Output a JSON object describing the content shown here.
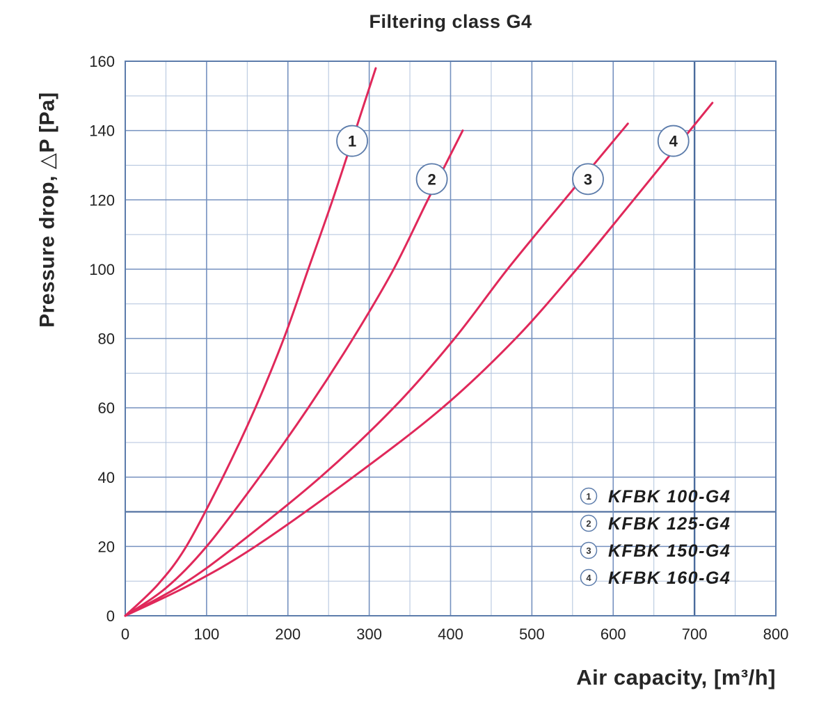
{
  "chart_data": {
    "type": "line",
    "title": "Filtering class G4",
    "xlabel": "Air capacity, [m³/h]",
    "ylabel": "Pressure drop, △P [Pa]",
    "xlim": [
      0,
      800
    ],
    "ylim": [
      0,
      160
    ],
    "x_ticks": [
      0,
      100,
      200,
      300,
      400,
      500,
      600,
      700,
      800
    ],
    "y_ticks": [
      0,
      20,
      40,
      60,
      80,
      100,
      120,
      140,
      160
    ],
    "x_major_step": 100,
    "x_minor_step": 50,
    "y_major_step": 20,
    "y_minor_step": 10,
    "grid": true,
    "highlight_gridlines": {
      "x": 700,
      "y": 30
    },
    "legend_position": "bottom-right",
    "colors": {
      "curve": "#e0285a",
      "grid_major": "#7591bf",
      "grid_minor": "#b0c2dc",
      "grid_highlight": "#4a6b9c",
      "frame": "#5c7cab",
      "text": "#222222",
      "marker_fill": "#fdfdfd"
    },
    "series": [
      {
        "id": "1",
        "name": "KFBK 100-G4",
        "marker": {
          "x": 279,
          "y": 137
        },
        "points": [
          [
            0,
            0
          ],
          [
            40,
            9
          ],
          [
            75,
            20
          ],
          [
            120,
            40
          ],
          [
            160,
            60
          ],
          [
            195,
            80
          ],
          [
            225,
            100
          ],
          [
            255,
            120
          ],
          [
            283,
            140
          ],
          [
            308,
            158
          ]
        ]
      },
      {
        "id": "2",
        "name": "KFBK 125-G4",
        "marker": {
          "x": 377,
          "y": 126
        },
        "points": [
          [
            0,
            0
          ],
          [
            50,
            8
          ],
          [
            100,
            20
          ],
          [
            165,
            40
          ],
          [
            225,
            60
          ],
          [
            280,
            80
          ],
          [
            330,
            100
          ],
          [
            372,
            120
          ],
          [
            415,
            140
          ]
        ]
      },
      {
        "id": "3",
        "name": "KFBK 150-G4",
        "marker": {
          "x": 569,
          "y": 126
        },
        "points": [
          [
            0,
            0
          ],
          [
            70,
            9
          ],
          [
            135,
            20
          ],
          [
            240,
            40
          ],
          [
            330,
            60
          ],
          [
            405,
            80
          ],
          [
            470,
            100
          ],
          [
            540,
            120
          ],
          [
            618,
            142
          ]
        ]
      },
      {
        "id": "4",
        "name": "KFBK 160-G4",
        "marker": {
          "x": 674,
          "y": 137
        },
        "points": [
          [
            0,
            0
          ],
          [
            80,
            9
          ],
          [
            160,
            20
          ],
          [
            280,
            40
          ],
          [
            390,
            60
          ],
          [
            480,
            80
          ],
          [
            555,
            100
          ],
          [
            625,
            120
          ],
          [
            722,
            148
          ]
        ]
      }
    ]
  }
}
